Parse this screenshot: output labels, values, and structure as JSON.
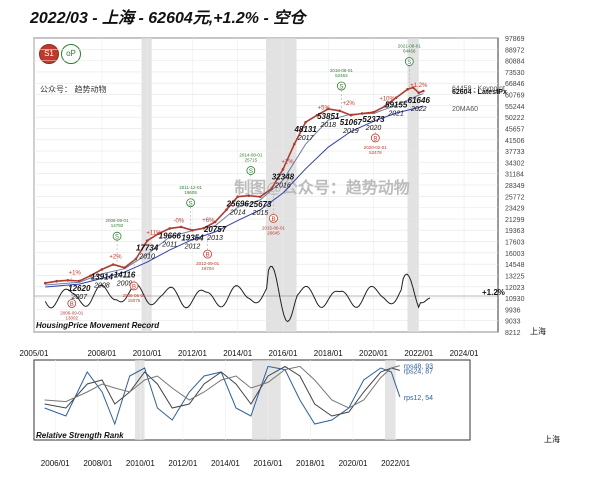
{
  "title": "2022/03 - 上海 - 62604元,+1.2% - 空仓",
  "subtitle": "公众号：  趋势动物",
  "logo_left": "S1",
  "logo_right": "oP",
  "watermark": "制图@公众号：趋势动物",
  "colors": {
    "price": "#b03a2e",
    "ma_blue": "#2e3fb0",
    "ma_gray": "#6d7fa8",
    "volume": "#222222",
    "highlight": "#d8d8d8",
    "rps": "#2b5fa8",
    "text": "#111111"
  },
  "chart_data": [
    {
      "type": "line",
      "title": "HousingPrice Movement Record",
      "corner_label": "上海",
      "y_ticks": [
        "97869",
        "88972",
        "80884",
        "73530",
        "66846",
        "60769",
        "55244",
        "50222",
        "45657",
        "41506",
        "37733",
        "34302",
        "31184",
        "28349",
        "25772",
        "23429",
        "21299",
        "19363",
        "17603",
        "16003",
        "14548",
        "13225",
        "12023",
        "10930",
        "9936",
        "9033",
        "8212"
      ],
      "x_ticks": [
        "2005/01",
        "2008/01",
        "2010/01",
        "2012/01",
        "2014/01",
        "2016/01",
        "2018/01",
        "2020/01",
        "2022/01",
        "2024/01"
      ],
      "x_range": [
        2005.0,
        2025.5
      ],
      "y_range": [
        8212,
        97869
      ],
      "y_scale": "log",
      "shaded_periods": [
        [
          2009.75,
          2010.2
        ],
        [
          2015.25,
          2016.6
        ],
        [
          2021.5,
          2022.0
        ]
      ],
      "year_labels": [
        {
          "label": "12620\n2007",
          "year": 2007.0,
          "value": 12620
        },
        {
          "label": "13914\n2008",
          "year": 2008.0,
          "value": 13914
        },
        {
          "label": "14116\n2009",
          "year": 2009.0,
          "value": 14116
        },
        {
          "label": "17734\n2010",
          "year": 2010.0,
          "value": 17734
        },
        {
          "label": "19666\n2011",
          "year": 2011.0,
          "value": 19666
        },
        {
          "label": "19354\n2012",
          "year": 2012.0,
          "value": 19354
        },
        {
          "label": "20757\n2013",
          "year": 2013.0,
          "value": 20757
        },
        {
          "label": "25696\n2014",
          "year": 2014.0,
          "value": 25696
        },
        {
          "label": "25673\n2015",
          "year": 2015.0,
          "value": 25673
        },
        {
          "label": "32348\n2016",
          "year": 2016.0,
          "value": 32348
        },
        {
          "label": "48131\n2017",
          "year": 2017.0,
          "value": 48131
        },
        {
          "label": "53851\n2018",
          "year": 2018.0,
          "value": 53851
        },
        {
          "label": "51067\n2019",
          "year": 2019.0,
          "value": 51067
        },
        {
          "label": "52373\n2020",
          "year": 2020.0,
          "value": 52373
        },
        {
          "label": "59155\n2021",
          "year": 2021.0,
          "value": 59155
        },
        {
          "label": "61646\n2022",
          "year": 2022.0,
          "value": 61646
        }
      ],
      "right_annotations": [
        {
          "text": "64458 - Keypoint",
          "value": 64458
        },
        {
          "text": "62604 - LatestPx",
          "value": 62604
        },
        {
          "text": "20MA60",
          "value": 54200
        }
      ],
      "pct_annotations": [
        "+1%",
        "+2%",
        "-0%",
        "+11%",
        "+6%",
        "+2%",
        "+5%",
        "+2%",
        "+10%",
        "+1.2%"
      ],
      "keypoints": [
        {
          "label": "S",
          "date_text": "2008-09-01\n14792",
          "year": 2008.67,
          "value": 14792
        },
        {
          "label": "S",
          "date_text": "2011-12-01\n19605",
          "year": 2011.92,
          "value": 19605
        },
        {
          "label": "S",
          "date_text": "2014-08-01\n25715",
          "year": 2014.58,
          "value": 25715
        },
        {
          "label": "S",
          "date_text": "2018-08-01\n52463",
          "year": 2018.58,
          "value": 52463
        },
        {
          "label": "S",
          "date_text": "2021-08-01\n64458",
          "year": 2021.58,
          "value": 64458
        },
        {
          "label": "B",
          "date_text": "2006-09-01\n13002",
          "year": 2006.67,
          "value": 13002
        },
        {
          "label": "B",
          "date_text": "2009-06-01\n15075",
          "year": 2009.42,
          "value": 15075
        },
        {
          "label": "B",
          "date_text": "2012-09-01\n19704",
          "year": 2012.67,
          "value": 19704
        },
        {
          "label": "B",
          "date_text": "2015-08-01\n26645",
          "year": 2015.58,
          "value": 26645
        },
        {
          "label": "B",
          "date_text": "2020-02-01\n52478",
          "year": 2020.08,
          "value": 52478
        }
      ],
      "price": [
        [
          2005.5,
          12400
        ],
        [
          2006.0,
          12600
        ],
        [
          2006.5,
          12700
        ],
        [
          2007.0,
          12620
        ],
        [
          2007.5,
          13200
        ],
        [
          2008.0,
          13914
        ],
        [
          2008.5,
          14500
        ],
        [
          2009.0,
          14116
        ],
        [
          2009.5,
          15200
        ],
        [
          2010.0,
          17734
        ],
        [
          2010.5,
          18800
        ],
        [
          2011.0,
          19666
        ],
        [
          2011.5,
          19900
        ],
        [
          2012.0,
          19354
        ],
        [
          2012.5,
          19700
        ],
        [
          2013.0,
          20757
        ],
        [
          2013.5,
          23000
        ],
        [
          2014.0,
          25696
        ],
        [
          2014.5,
          25900
        ],
        [
          2015.0,
          25673
        ],
        [
          2015.5,
          27500
        ],
        [
          2016.0,
          32348
        ],
        [
          2016.5,
          40000
        ],
        [
          2017.0,
          48131
        ],
        [
          2017.5,
          51000
        ],
        [
          2018.0,
          53851
        ],
        [
          2018.5,
          53000
        ],
        [
          2019.0,
          51067
        ],
        [
          2019.5,
          51800
        ],
        [
          2020.0,
          52373
        ],
        [
          2020.5,
          55000
        ],
        [
          2021.0,
          59155
        ],
        [
          2021.5,
          63500
        ],
        [
          2021.75,
          64458
        ],
        [
          2022.0,
          61646
        ],
        [
          2022.2,
          62604
        ]
      ],
      "ma_long": [
        [
          2005.5,
          12000
        ],
        [
          2007.0,
          12300
        ],
        [
          2008.0,
          12900
        ],
        [
          2009.0,
          13600
        ],
        [
          2010.0,
          14800
        ],
        [
          2011.0,
          16400
        ],
        [
          2012.0,
          17900
        ],
        [
          2013.0,
          19100
        ],
        [
          2014.0,
          21000
        ],
        [
          2015.0,
          23000
        ],
        [
          2016.0,
          26500
        ],
        [
          2017.0,
          32500
        ],
        [
          2018.0,
          39000
        ],
        [
          2019.0,
          44500
        ],
        [
          2020.0,
          48500
        ],
        [
          2021.0,
          52000
        ],
        [
          2022.0,
          54500
        ],
        [
          2022.2,
          55200
        ]
      ],
      "ma_short": [
        [
          2005.5,
          12200
        ],
        [
          2007.0,
          12500
        ],
        [
          2008.0,
          13400
        ],
        [
          2009.0,
          14000
        ],
        [
          2010.0,
          15800
        ],
        [
          2011.0,
          18300
        ],
        [
          2012.0,
          19300
        ],
        [
          2013.0,
          20100
        ],
        [
          2014.0,
          23500
        ],
        [
          2015.0,
          25000
        ],
        [
          2016.0,
          29500
        ],
        [
          2017.0,
          40000
        ],
        [
          2018.0,
          49000
        ],
        [
          2019.0,
          51500
        ],
        [
          2020.0,
          51800
        ],
        [
          2021.0,
          55500
        ],
        [
          2022.0,
          60500
        ],
        [
          2022.2,
          61200
        ]
      ],
      "momentum_label": "+1.2%"
    },
    {
      "type": "line",
      "title": "Relative Strength Rank",
      "corner_label": "上海",
      "x_ticks": [
        "2006/01",
        "2008/01",
        "2010/01",
        "2012/01",
        "2014/01",
        "2016/01",
        "2018/01",
        "2020/01",
        "2022/01"
      ],
      "x_range": [
        2005.0,
        2025.5
      ],
      "y_range": [
        0,
        100
      ],
      "series": [
        {
          "name": "rps12, 54",
          "values": [
            [
              2005.5,
              40
            ],
            [
              2006.5,
              30
            ],
            [
              2007.5,
              85
            ],
            [
              2008.2,
              60
            ],
            [
              2008.8,
              20
            ],
            [
              2009.5,
              80
            ],
            [
              2010.2,
              90
            ],
            [
              2010.8,
              40
            ],
            [
              2011.5,
              25
            ],
            [
              2012.3,
              60
            ],
            [
              2013.0,
              80
            ],
            [
              2013.8,
              85
            ],
            [
              2014.5,
              40
            ],
            [
              2015.2,
              30
            ],
            [
              2016.0,
              92
            ],
            [
              2016.8,
              88
            ],
            [
              2017.5,
              50
            ],
            [
              2018.2,
              20
            ],
            [
              2019.0,
              25
            ],
            [
              2019.8,
              40
            ],
            [
              2020.5,
              75
            ],
            [
              2021.3,
              90
            ],
            [
              2021.8,
              85
            ],
            [
              2022.2,
              54
            ]
          ]
        },
        {
          "name": "rps24, 87",
          "values": [
            [
              2005.5,
              45
            ],
            [
              2006.5,
              40
            ],
            [
              2007.5,
              70
            ],
            [
              2008.2,
              75
            ],
            [
              2008.8,
              45
            ],
            [
              2009.5,
              60
            ],
            [
              2010.2,
              85
            ],
            [
              2010.8,
              70
            ],
            [
              2011.5,
              40
            ],
            [
              2012.3,
              45
            ],
            [
              2013.0,
              70
            ],
            [
              2013.8,
              85
            ],
            [
              2014.5,
              70
            ],
            [
              2015.2,
              45
            ],
            [
              2016.0,
              80
            ],
            [
              2016.8,
              92
            ],
            [
              2017.5,
              80
            ],
            [
              2018.2,
              45
            ],
            [
              2019.0,
              30
            ],
            [
              2019.8,
              35
            ],
            [
              2020.5,
              60
            ],
            [
              2021.3,
              85
            ],
            [
              2021.8,
              90
            ],
            [
              2022.2,
              87
            ]
          ]
        },
        {
          "name": "rps48, 93",
          "values": [
            [
              2005.5,
              50
            ],
            [
              2006.5,
              48
            ],
            [
              2007.5,
              60
            ],
            [
              2008.2,
              70
            ],
            [
              2008.8,
              65
            ],
            [
              2009.5,
              60
            ],
            [
              2010.2,
              75
            ],
            [
              2010.8,
              80
            ],
            [
              2011.5,
              65
            ],
            [
              2012.3,
              50
            ],
            [
              2013.0,
              60
            ],
            [
              2013.8,
              75
            ],
            [
              2014.5,
              80
            ],
            [
              2015.2,
              65
            ],
            [
              2016.0,
              72
            ],
            [
              2016.8,
              88
            ],
            [
              2017.5,
              92
            ],
            [
              2018.2,
              75
            ],
            [
              2019.0,
              50
            ],
            [
              2019.8,
              40
            ],
            [
              2020.5,
              50
            ],
            [
              2021.3,
              78
            ],
            [
              2021.8,
              90
            ],
            [
              2022.2,
              93
            ]
          ]
        }
      ]
    }
  ]
}
